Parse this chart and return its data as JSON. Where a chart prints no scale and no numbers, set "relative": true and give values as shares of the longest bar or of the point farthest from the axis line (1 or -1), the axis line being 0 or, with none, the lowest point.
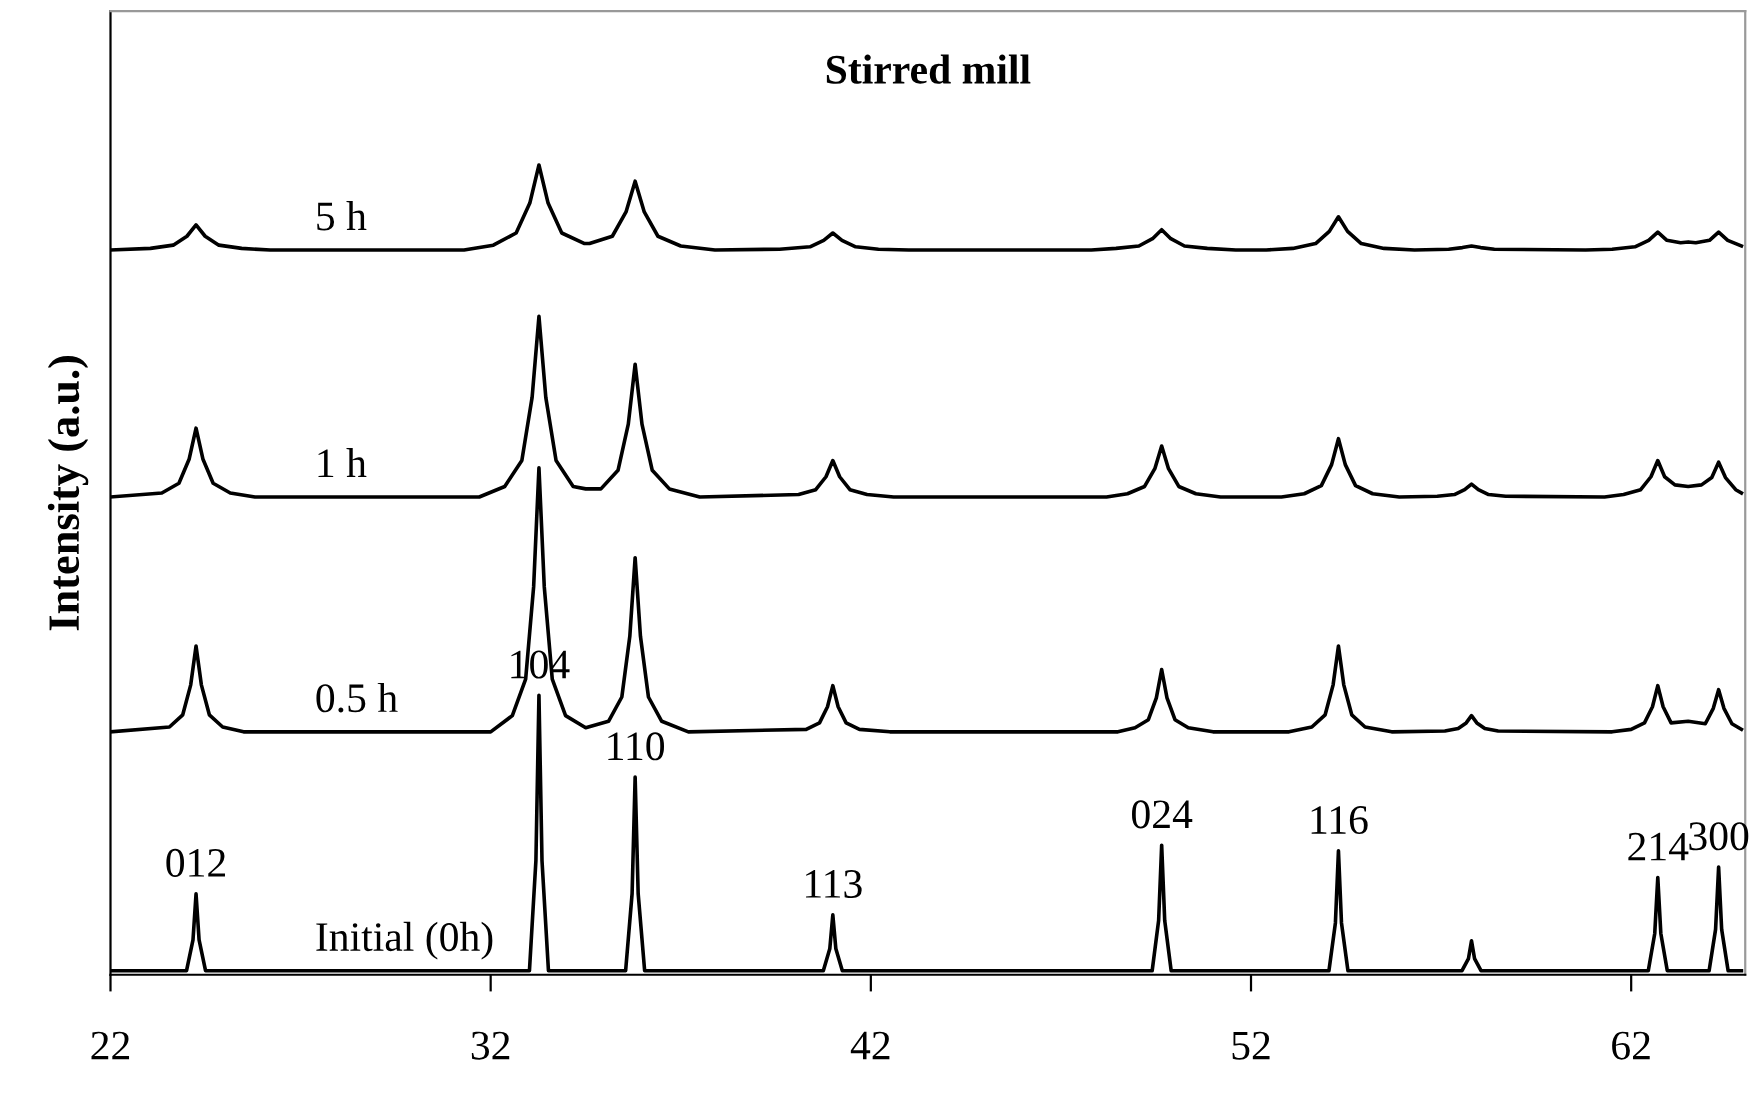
{
  "chart_data": {
    "type": "line",
    "title": "Stirred mill",
    "ylabel": "Intensity (a.u.)",
    "relative": true,
    "xlim": [
      22,
      65
    ],
    "xticks": [
      22,
      32,
      42,
      52,
      62
    ],
    "grid": false,
    "legend": false,
    "marker": "none",
    "line_style": "solid",
    "series": [
      {
        "name": "Initial (0h)",
        "color": "#000000",
        "x": [
          22,
          24.0,
          24.17,
          24.25,
          24.33,
          24.5,
          33.02,
          33.19,
          33.27,
          33.35,
          33.52,
          35.55,
          35.72,
          35.8,
          35.88,
          36.05,
          40.75,
          40.92,
          41.0,
          41.08,
          41.25,
          49.4,
          49.57,
          49.65,
          49.73,
          49.9,
          54.05,
          54.22,
          54.3,
          54.38,
          54.55,
          57.55,
          57.72,
          57.8,
          57.88,
          58.05,
          62.45,
          62.62,
          62.7,
          62.78,
          62.95,
          64.05,
          64.22,
          64.3,
          64.38,
          64.55,
          64.9
        ],
        "values": [
          0.005,
          0.005,
          0.043,
          0.1,
          0.043,
          0.005,
          0.005,
          0.141,
          0.345,
          0.141,
          0.005,
          0.005,
          0.1,
          0.244,
          0.1,
          0.005,
          0.005,
          0.032,
          0.074,
          0.032,
          0.005,
          0.005,
          0.067,
          0.16,
          0.067,
          0.005,
          0.005,
          0.064,
          0.153,
          0.064,
          0.005,
          0.005,
          0.02,
          0.042,
          0.02,
          0.005,
          0.005,
          0.051,
          0.12,
          0.051,
          0.005,
          0.005,
          0.056,
          0.133,
          0.056,
          0.005,
          0.005
        ]
      },
      {
        "name": "0.5 h",
        "color": "#000000",
        "x": [
          22,
          23.55,
          23.9,
          24.11,
          24.25,
          24.39,
          24.6,
          24.95,
          25.5,
          32.0,
          32.57,
          32.92,
          33.13,
          33.27,
          33.41,
          33.62,
          33.97,
          34.5,
          35.1,
          35.45,
          35.66,
          35.8,
          35.94,
          36.15,
          36.5,
          37.2,
          40.3,
          40.65,
          40.86,
          41.0,
          41.14,
          41.35,
          41.7,
          42.5,
          48.5,
          48.95,
          49.3,
          49.51,
          49.65,
          49.79,
          50.0,
          50.35,
          51.0,
          53.0,
          53.6,
          53.95,
          54.16,
          54.3,
          54.44,
          54.65,
          55.0,
          55.7,
          57.1,
          57.45,
          57.66,
          57.8,
          57.94,
          58.15,
          58.5,
          61.5,
          62.0,
          62.35,
          62.56,
          62.7,
          62.84,
          63.05,
          63.5,
          63.95,
          64.16,
          64.3,
          64.44,
          64.65,
          64.9
        ],
        "values": [
          0.3,
          0.306,
          0.321,
          0.358,
          0.406,
          0.358,
          0.321,
          0.306,
          0.3,
          0.3,
          0.32,
          0.365,
          0.479,
          0.626,
          0.479,
          0.365,
          0.32,
          0.305,
          0.313,
          0.343,
          0.418,
          0.515,
          0.418,
          0.343,
          0.313,
          0.3,
          0.303,
          0.311,
          0.331,
          0.357,
          0.331,
          0.311,
          0.303,
          0.3,
          0.3,
          0.305,
          0.315,
          0.342,
          0.377,
          0.342,
          0.315,
          0.305,
          0.3,
          0.3,
          0.306,
          0.321,
          0.358,
          0.406,
          0.358,
          0.321,
          0.306,
          0.3,
          0.301,
          0.304,
          0.311,
          0.32,
          0.311,
          0.304,
          0.301,
          0.3,
          0.303,
          0.311,
          0.331,
          0.357,
          0.331,
          0.311,
          0.313,
          0.31,
          0.329,
          0.352,
          0.329,
          0.31,
          0.303
        ]
      },
      {
        "name": "1 h",
        "color": "#000000",
        "x": [
          22,
          23.35,
          23.8,
          24.07,
          24.25,
          24.43,
          24.7,
          25.15,
          25.8,
          31.7,
          32.37,
          32.82,
          33.09,
          33.27,
          33.45,
          33.72,
          34.17,
          34.5,
          34.9,
          35.35,
          35.62,
          35.8,
          35.98,
          36.25,
          36.7,
          37.5,
          40.1,
          40.55,
          40.82,
          41.0,
          41.18,
          41.45,
          41.9,
          42.6,
          48.2,
          48.75,
          49.2,
          49.47,
          49.65,
          49.83,
          50.1,
          50.55,
          51.2,
          52.8,
          53.4,
          53.85,
          54.12,
          54.3,
          54.48,
          54.75,
          55.2,
          55.9,
          56.9,
          57.35,
          57.62,
          57.8,
          57.98,
          58.25,
          58.7,
          61.3,
          61.8,
          62.25,
          62.52,
          62.7,
          62.88,
          63.15,
          63.5,
          63.85,
          64.12,
          64.3,
          64.48,
          64.75,
          64.9
        ],
        "values": [
          0.59,
          0.595,
          0.607,
          0.637,
          0.675,
          0.637,
          0.607,
          0.595,
          0.59,
          0.59,
          0.603,
          0.635,
          0.713,
          0.813,
          0.713,
          0.635,
          0.603,
          0.6,
          0.6,
          0.623,
          0.68,
          0.754,
          0.68,
          0.623,
          0.6,
          0.59,
          0.593,
          0.599,
          0.615,
          0.635,
          0.615,
          0.599,
          0.593,
          0.59,
          0.59,
          0.594,
          0.603,
          0.625,
          0.653,
          0.625,
          0.603,
          0.594,
          0.59,
          0.59,
          0.594,
          0.604,
          0.63,
          0.662,
          0.63,
          0.604,
          0.594,
          0.59,
          0.591,
          0.593,
          0.599,
          0.606,
          0.599,
          0.593,
          0.591,
          0.59,
          0.593,
          0.599,
          0.615,
          0.635,
          0.615,
          0.605,
          0.603,
          0.605,
          0.614,
          0.633,
          0.614,
          0.599,
          0.595
        ]
      },
      {
        "name": "5 h",
        "color": "#000000",
        "x": [
          22,
          23.05,
          23.65,
          24.01,
          24.25,
          24.49,
          24.85,
          25.45,
          26.2,
          31.3,
          32.07,
          32.67,
          33.03,
          33.27,
          33.51,
          33.87,
          34.47,
          34.6,
          35.2,
          35.56,
          35.8,
          36.04,
          36.4,
          37.0,
          37.9,
          39.6,
          40.4,
          40.76,
          41.0,
          41.24,
          41.6,
          42.2,
          43.0,
          47.8,
          48.45,
          49.05,
          49.41,
          49.65,
          49.89,
          50.25,
          50.85,
          51.6,
          52.4,
          53.1,
          53.7,
          54.06,
          54.3,
          54.54,
          54.9,
          55.5,
          56.3,
          57.2,
          57.56,
          57.8,
          58.04,
          58.4,
          60.8,
          61.5,
          62.1,
          62.46,
          62.7,
          62.94,
          63.3,
          63.5,
          63.7,
          64.06,
          64.3,
          64.54,
          64.9
        ],
        "values": [
          0.895,
          0.897,
          0.901,
          0.912,
          0.926,
          0.912,
          0.901,
          0.897,
          0.895,
          0.895,
          0.901,
          0.916,
          0.953,
          1.0,
          0.953,
          0.916,
          0.903,
          0.903,
          0.912,
          0.942,
          0.98,
          0.942,
          0.912,
          0.9,
          0.895,
          0.896,
          0.899,
          0.907,
          0.916,
          0.907,
          0.899,
          0.896,
          0.895,
          0.895,
          0.897,
          0.9,
          0.909,
          0.92,
          0.909,
          0.9,
          0.897,
          0.895,
          0.895,
          0.897,
          0.903,
          0.918,
          0.936,
          0.918,
          0.903,
          0.897,
          0.895,
          0.896,
          0.898,
          0.9,
          0.898,
          0.896,
          0.895,
          0.896,
          0.899,
          0.907,
          0.917,
          0.907,
          0.904,
          0.905,
          0.904,
          0.907,
          0.917,
          0.907,
          0.9
        ]
      }
    ],
    "annotations": [
      {
        "text": "012",
        "x": 24.25,
        "y": 0.1
      },
      {
        "text": "104",
        "x": 33.27,
        "y": 0.345
      },
      {
        "text": "110",
        "x": 35.8,
        "y": 0.244
      },
      {
        "text": "113",
        "x": 41.0,
        "y": 0.074
      },
      {
        "text": "024",
        "x": 49.65,
        "y": 0.16
      },
      {
        "text": "116",
        "x": 54.3,
        "y": 0.153
      },
      {
        "text": "214",
        "x": 62.7,
        "y": 0.12
      },
      {
        "text": "300",
        "x": 64.3,
        "y": 0.133
      }
    ]
  }
}
